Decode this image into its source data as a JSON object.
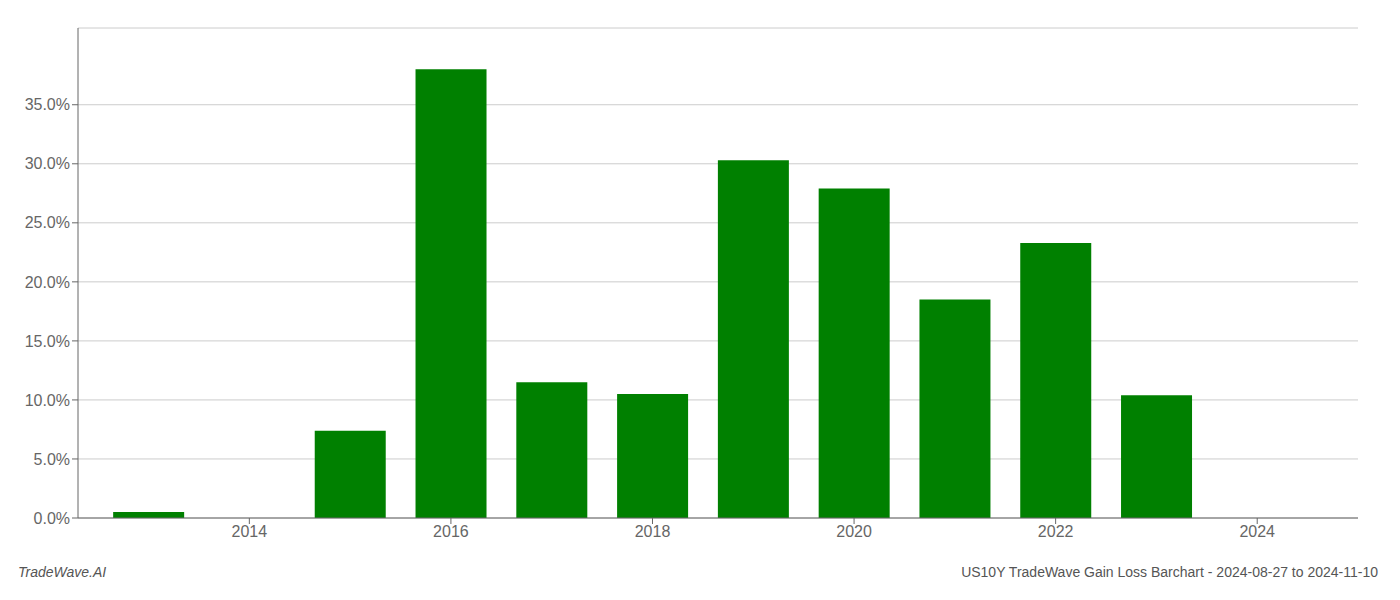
{
  "chart_data": {
    "type": "bar",
    "title": "US10Y TradeWave Gain Loss Barchart - 2024-08-27 to 2024-11-10",
    "annotations": [
      "TradeWave.AI"
    ],
    "x": [
      2013,
      2015,
      2016,
      2017,
      2018,
      2019,
      2020,
      2021,
      2022,
      2023
    ],
    "values": [
      0.005,
      0.074,
      0.38,
      0.115,
      0.105,
      0.303,
      0.279,
      0.185,
      0.233,
      0.104
    ],
    "color": "#008000",
    "xlim": [
      2012.3,
      2025.0
    ],
    "xticks": [
      2014,
      2016,
      2018,
      2020,
      2022,
      2024
    ],
    "ylim": [
      0,
      0.415
    ],
    "yticks": [
      {
        "value": 0.0,
        "label": "0.0%"
      },
      {
        "value": 0.05,
        "label": "5.0%"
      },
      {
        "value": 0.1,
        "label": "10.0%"
      },
      {
        "value": 0.15,
        "label": "15.0%"
      },
      {
        "value": 0.2,
        "label": "20.0%"
      },
      {
        "value": 0.25,
        "label": "25.0%"
      },
      {
        "value": 0.3,
        "label": "30.0%"
      },
      {
        "value": 0.35,
        "label": "35.0%"
      }
    ],
    "grid": true
  }
}
